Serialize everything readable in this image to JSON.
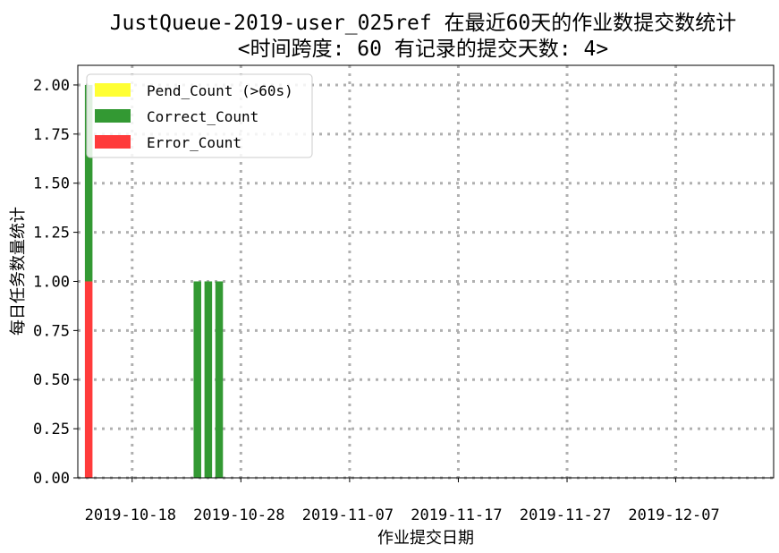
{
  "chart_data": {
    "type": "bar",
    "title_lines": [
      "JustQueue-2019-user_025ref 在最近60天的作业数提交数统计",
      "<时间跨度: 60  有记录的提交天数: 4>"
    ],
    "xlabel": "作业提交日期",
    "ylabel": "每日任务数量统计",
    "stacked": true,
    "x": [
      "2019-10-14",
      "2019-10-24",
      "2019-10-25",
      "2019-10-26"
    ],
    "series": [
      {
        "name": "Error_Count",
        "color": "#ff3b3b",
        "values": [
          1,
          0,
          0,
          0
        ]
      },
      {
        "name": "Correct_Count",
        "color": "#339933",
        "values": [
          1,
          1,
          1,
          1
        ]
      },
      {
        "name": "Pend_Count (>60s)",
        "color": "#ffff33",
        "values": [
          0,
          0,
          0,
          0
        ]
      }
    ],
    "legend_order": [
      "Pend_Count (>60s)",
      "Correct_Count",
      "Error_Count"
    ],
    "legend_position": "upper-left",
    "xlim": [
      "2019-10-13",
      "2019-12-16"
    ],
    "ylim": [
      0,
      2.1
    ],
    "yticks": [
      "0.00",
      "0.25",
      "0.50",
      "0.75",
      "1.00",
      "1.25",
      "1.50",
      "1.75",
      "2.00"
    ],
    "xticks": [
      "2019-10-18",
      "2019-10-28",
      "2019-11-07",
      "2019-11-17",
      "2019-11-27",
      "2019-12-07"
    ],
    "grid": true
  }
}
